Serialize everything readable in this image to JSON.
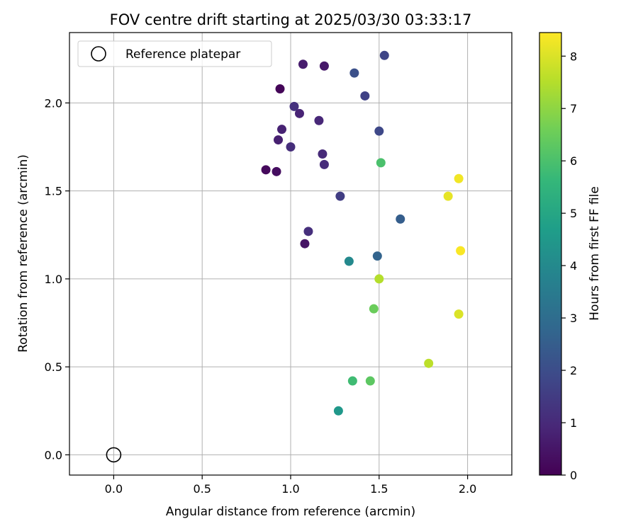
{
  "chart_data": {
    "type": "scatter",
    "title": "FOV centre drift starting at 2025/03/30 03:33:17",
    "xlabel": "Angular distance from reference (arcmin)",
    "ylabel": "Rotation from reference (arcmin)",
    "xlim": [
      -0.25,
      2.25
    ],
    "ylim": [
      -0.115,
      2.4
    ],
    "xticks": [
      0.0,
      0.5,
      1.0,
      1.5,
      2.0
    ],
    "xtick_labels": [
      "0.0",
      "0.5",
      "1.0",
      "1.5",
      "2.0"
    ],
    "yticks": [
      0.0,
      0.5,
      1.0,
      1.5,
      2.0
    ],
    "ytick_labels": [
      "0.0",
      "0.5",
      "1.0",
      "1.5",
      "2.0"
    ],
    "grid": true,
    "legend": {
      "placement": "upper-left",
      "entries": [
        {
          "label": "Reference platepar",
          "marker": "hollow-circle"
        }
      ]
    },
    "reference_point": {
      "x": 0.0,
      "y": 0.0
    },
    "colorbar": {
      "label": "Hours from first FF file",
      "range": [
        0,
        8.45
      ],
      "ticks": [
        0,
        1,
        2,
        3,
        4,
        5,
        6,
        7,
        8
      ],
      "tick_labels": [
        "0",
        "1",
        "2",
        "3",
        "4",
        "5",
        "6",
        "7",
        "8"
      ],
      "colormap": "viridis",
      "colormap_stops": [
        "#440154",
        "#482878",
        "#3e4989",
        "#31688e",
        "#26828e",
        "#1f9e89",
        "#35b779",
        "#6ece58",
        "#b5de2b",
        "#fde725"
      ]
    },
    "points": [
      {
        "x": 0.94,
        "y": 2.08,
        "hours": 0.1
      },
      {
        "x": 0.86,
        "y": 1.62,
        "hours": 0.2
      },
      {
        "x": 0.92,
        "y": 1.61,
        "hours": 0.3
      },
      {
        "x": 1.08,
        "y": 1.2,
        "hours": 0.45
      },
      {
        "x": 1.19,
        "y": 2.21,
        "hours": 0.55
      },
      {
        "x": 1.07,
        "y": 2.22,
        "hours": 0.65
      },
      {
        "x": 0.93,
        "y": 1.79,
        "hours": 0.75
      },
      {
        "x": 0.95,
        "y": 1.85,
        "hours": 0.8
      },
      {
        "x": 1.05,
        "y": 1.94,
        "hours": 0.85
      },
      {
        "x": 1.16,
        "y": 1.9,
        "hours": 0.95
      },
      {
        "x": 1.18,
        "y": 1.71,
        "hours": 1.0
      },
      {
        "x": 1.19,
        "y": 1.65,
        "hours": 1.05
      },
      {
        "x": 1.0,
        "y": 1.75,
        "hours": 1.1
      },
      {
        "x": 1.1,
        "y": 1.27,
        "hours": 1.15
      },
      {
        "x": 1.02,
        "y": 1.98,
        "hours": 1.2
      },
      {
        "x": 1.28,
        "y": 1.47,
        "hours": 1.55
      },
      {
        "x": 1.42,
        "y": 2.04,
        "hours": 1.65
      },
      {
        "x": 1.53,
        "y": 2.27,
        "hours": 1.75
      },
      {
        "x": 1.5,
        "y": 1.84,
        "hours": 1.85
      },
      {
        "x": 1.36,
        "y": 2.17,
        "hours": 2.1
      },
      {
        "x": 1.62,
        "y": 1.34,
        "hours": 2.5
      },
      {
        "x": 1.49,
        "y": 1.13,
        "hours": 2.7
      },
      {
        "x": 1.33,
        "y": 1.1,
        "hours": 4.0
      },
      {
        "x": 1.27,
        "y": 0.25,
        "hours": 4.5
      },
      {
        "x": 1.35,
        "y": 0.42,
        "hours": 5.8
      },
      {
        "x": 1.51,
        "y": 1.66,
        "hours": 6.0
      },
      {
        "x": 1.45,
        "y": 0.42,
        "hours": 6.3
      },
      {
        "x": 1.47,
        "y": 0.83,
        "hours": 6.5
      },
      {
        "x": 1.5,
        "y": 1.0,
        "hours": 7.5
      },
      {
        "x": 1.78,
        "y": 0.52,
        "hours": 7.6
      },
      {
        "x": 1.95,
        "y": 0.8,
        "hours": 8.0
      },
      {
        "x": 1.89,
        "y": 1.47,
        "hours": 8.15
      },
      {
        "x": 1.95,
        "y": 1.57,
        "hours": 8.3
      },
      {
        "x": 1.96,
        "y": 1.16,
        "hours": 8.4
      }
    ]
  }
}
